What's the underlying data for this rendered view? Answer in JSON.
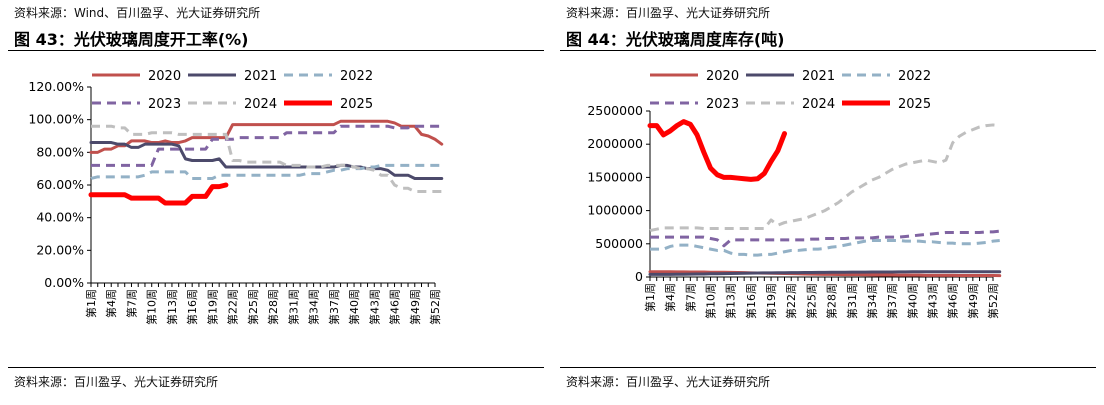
{
  "left_panel": {
    "source_top": "资料来源：Wind、百川盈孚、光大证券研究所",
    "title": "图 43：光伏玻璃周度开工率(%)",
    "source_bottom": "资料来源：百川盈孚、光大证券研究所"
  },
  "right_panel": {
    "source_top": "资料来源：百川盈孚、光大证券研究所",
    "title": "图 44：光伏玻璃周度库存(吨)",
    "source_bottom": "资料来源：百川盈孚、光大证券研究所"
  },
  "chart_data": [
    {
      "type": "line",
      "title": "图 43：光伏玻璃周度开工率(%)",
      "y_ticks": [
        "0.00%",
        "20.00%",
        "40.00%",
        "60.00%",
        "80.00%",
        "100.00%",
        "120.00%"
      ],
      "ylim": [
        0,
        120
      ],
      "x_tick_labels": [
        "第1周",
        "第4周",
        "第7周",
        "第10周",
        "第13周",
        "第16周",
        "第19周",
        "第22周",
        "第25周",
        "第28周",
        "第31周",
        "第34周",
        "第37周",
        "第40周",
        "第43周",
        "第46周",
        "第49周",
        "第52周"
      ],
      "grid": false,
      "legend_position": "top",
      "series": [
        {
          "name": "2020",
          "color": "#C0504D",
          "style": "solid",
          "width": 3,
          "values": [
            80,
            80,
            82,
            82,
            84,
            84,
            87,
            87,
            87,
            86,
            86,
            87,
            86,
            86,
            87,
            89,
            89,
            89,
            89,
            89,
            89,
            97,
            97,
            97,
            97,
            97,
            97,
            97,
            97,
            97,
            97,
            97,
            97,
            97,
            97,
            97,
            97,
            99,
            99,
            99,
            99,
            99,
            99,
            99,
            99,
            98,
            96,
            96,
            96,
            91,
            90,
            88,
            85
          ]
        },
        {
          "name": "2021",
          "color": "#4C4A6B",
          "style": "solid",
          "width": 3,
          "values": [
            86,
            86,
            86,
            86,
            85,
            85,
            83,
            83,
            85,
            85,
            85,
            85,
            85,
            84,
            76,
            75,
            75,
            75,
            75,
            76,
            71,
            71,
            71,
            71,
            71,
            71,
            71,
            71,
            71,
            71,
            71,
            71,
            71,
            71,
            71,
            71,
            71,
            72,
            72,
            71,
            71,
            70,
            70,
            70,
            69,
            66,
            66,
            66,
            64,
            64,
            64,
            64,
            64
          ]
        },
        {
          "name": "2022",
          "color": "#93B1C6",
          "style": "dash",
          "width": 3,
          "values": [
            64,
            65,
            65,
            65,
            65,
            65,
            65,
            65,
            66,
            68,
            68,
            68,
            68,
            68,
            68,
            64,
            64,
            64,
            64,
            66,
            66,
            66,
            66,
            66,
            66,
            66,
            66,
            66,
            66,
            66,
            66,
            66,
            67,
            67,
            67,
            68,
            69,
            69,
            70,
            70,
            70,
            71,
            71,
            72,
            72,
            72,
            72,
            72,
            72,
            72,
            72,
            72,
            72
          ]
        },
        {
          "name": "2023",
          "color": "#8064A2",
          "style": "dash",
          "width": 3,
          "values": [
            72,
            72,
            72,
            72,
            72,
            72,
            72,
            72,
            72,
            72,
            82,
            82,
            82,
            82,
            82,
            82,
            82,
            82,
            88,
            88,
            88,
            88,
            89,
            89,
            89,
            89,
            89,
            89,
            89,
            92,
            92,
            92,
            92,
            92,
            92,
            92,
            92,
            96,
            96,
            96,
            96,
            96,
            96,
            96,
            96,
            95,
            95,
            95,
            96,
            96,
            96,
            96,
            96
          ]
        },
        {
          "name": "2024",
          "color": "#BFBFBF",
          "style": "dash",
          "width": 3,
          "values": [
            96,
            96,
            96,
            96,
            95,
            95,
            91,
            91,
            91,
            92,
            92,
            92,
            92,
            91,
            91,
            91,
            91,
            91,
            91,
            91,
            91,
            75,
            75,
            74,
            74,
            74,
            74,
            74,
            74,
            72,
            72,
            72,
            71,
            71,
            71,
            72,
            72,
            72,
            72,
            71,
            70,
            70,
            69,
            66,
            66,
            60,
            58,
            58,
            56,
            56,
            56,
            56,
            56
          ]
        },
        {
          "name": "2025",
          "color": "#FF0000",
          "style": "solid",
          "width": 5,
          "values": [
            54,
            54,
            54,
            54,
            54,
            54,
            52,
            52,
            52,
            52,
            52,
            49,
            49,
            49,
            49,
            53,
            53,
            53,
            59,
            59,
            60
          ]
        }
      ]
    },
    {
      "type": "line",
      "title": "图 44：光伏玻璃周度库存(吨)",
      "y_ticks": [
        "0",
        "500000",
        "1000000",
        "1500000",
        "2000000",
        "2500000"
      ],
      "ylim": [
        0,
        2500000
      ],
      "x_tick_labels": [
        "第1周",
        "第4周",
        "第7周",
        "第10周",
        "第13周",
        "第16周",
        "第19周",
        "第22周",
        "第25周",
        "第28周",
        "第31周",
        "第34周",
        "第37周",
        "第40周",
        "第43周",
        "第46周",
        "第49周",
        "第52周"
      ],
      "grid": false,
      "legend_position": "top",
      "series": [
        {
          "name": "2020",
          "color": "#C0504D",
          "style": "solid",
          "width": 3,
          "values": [
            80000,
            80000,
            80000,
            80000,
            78000,
            78000,
            75000,
            75000,
            75000,
            72000,
            72000,
            72000,
            70000,
            68000,
            65000,
            62000,
            60000,
            58000,
            56000,
            54000,
            52000,
            50000,
            48000,
            46000,
            44000,
            42000,
            40000,
            40000,
            38000,
            36000,
            35000,
            35000,
            33000,
            32000,
            30000,
            30000,
            30000,
            28000,
            28000,
            28000,
            28000,
            25000,
            25000,
            25000,
            24000,
            24000,
            23000,
            23000,
            22000,
            22000,
            22000,
            22000,
            20000
          ]
        },
        {
          "name": "2021",
          "color": "#4C4A6B",
          "style": "solid",
          "width": 3,
          "values": [
            40000,
            40000,
            40000,
            40000,
            42000,
            42000,
            44000,
            46000,
            46000,
            48000,
            48000,
            50000,
            52000,
            54000,
            56000,
            58000,
            60000,
            62000,
            62000,
            64000,
            64000,
            66000,
            66000,
            68000,
            68000,
            70000,
            70000,
            72000,
            72000,
            72000,
            74000,
            74000,
            74000,
            75000,
            75000,
            76000,
            76000,
            78000,
            78000,
            80000,
            80000,
            80000,
            80000,
            80000,
            80000,
            80000,
            80000,
            80000,
            80000,
            80000,
            80000,
            80000,
            80000
          ]
        },
        {
          "name": "2022",
          "color": "#93B1C6",
          "style": "dash",
          "width": 3,
          "values": [
            420000,
            420000,
            420000,
            460000,
            480000,
            480000,
            480000,
            460000,
            440000,
            420000,
            400000,
            400000,
            360000,
            340000,
            340000,
            330000,
            330000,
            340000,
            340000,
            360000,
            380000,
            400000,
            400000,
            410000,
            420000,
            420000,
            430000,
            450000,
            460000,
            480000,
            500000,
            520000,
            540000,
            550000,
            550000,
            550000,
            550000,
            550000,
            540000,
            540000,
            540000,
            530000,
            530000,
            520000,
            510000,
            510000,
            500000,
            500000,
            500000,
            510000,
            520000,
            540000,
            550000
          ]
        },
        {
          "name": "2023",
          "color": "#8064A2",
          "style": "dash",
          "width": 3,
          "values": [
            600000,
            600000,
            600000,
            600000,
            600000,
            600000,
            600000,
            600000,
            600000,
            580000,
            560000,
            470000,
            560000,
            560000,
            560000,
            560000,
            560000,
            560000,
            560000,
            560000,
            560000,
            560000,
            560000,
            560000,
            570000,
            570000,
            580000,
            580000,
            580000,
            580000,
            590000,
            590000,
            590000,
            590000,
            600000,
            600000,
            600000,
            600000,
            610000,
            620000,
            630000,
            640000,
            650000,
            660000,
            670000,
            670000,
            670000,
            670000,
            670000,
            670000,
            680000,
            680000,
            690000
          ]
        },
        {
          "name": "2024",
          "color": "#BFBFBF",
          "style": "dash",
          "width": 3,
          "values": [
            700000,
            720000,
            740000,
            740000,
            740000,
            740000,
            740000,
            740000,
            730000,
            730000,
            730000,
            730000,
            730000,
            730000,
            730000,
            730000,
            730000,
            730000,
            860000,
            780000,
            820000,
            840000,
            860000,
            880000,
            920000,
            960000,
            1000000,
            1060000,
            1120000,
            1200000,
            1280000,
            1340000,
            1400000,
            1460000,
            1500000,
            1560000,
            1620000,
            1660000,
            1700000,
            1720000,
            1740000,
            1760000,
            1740000,
            1720000,
            1760000,
            2020000,
            2120000,
            2180000,
            2220000,
            2260000,
            2280000,
            2290000,
            2280000
          ]
        },
        {
          "name": "2025",
          "color": "#FF0000",
          "style": "solid",
          "width": 5,
          "values": [
            2280000,
            2280000,
            2140000,
            2200000,
            2280000,
            2340000,
            2300000,
            2140000,
            1880000,
            1640000,
            1540000,
            1500000,
            1500000,
            1490000,
            1480000,
            1470000,
            1480000,
            1560000,
            1740000,
            1900000,
            2160000
          ]
        }
      ]
    }
  ]
}
